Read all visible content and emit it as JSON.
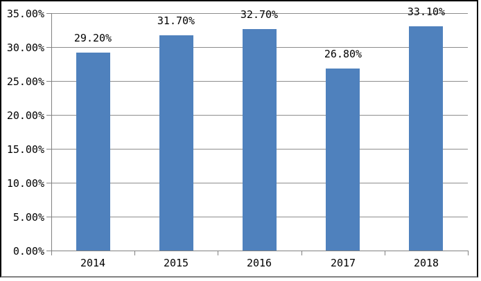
{
  "chart_data": {
    "type": "bar",
    "title": "",
    "xlabel": "",
    "ylabel": "",
    "categories": [
      "2014",
      "2015",
      "2016",
      "2017",
      "2018"
    ],
    "values": [
      29.2,
      31.7,
      32.7,
      26.8,
      33.1
    ],
    "value_labels": [
      "29.20%",
      "31.70%",
      "32.70%",
      "26.80%",
      "33.10%"
    ],
    "ylim": [
      0,
      35
    ],
    "y_ticks": [
      0,
      5,
      10,
      15,
      20,
      25,
      30,
      35
    ],
    "y_tick_labels": [
      "0.00%",
      "5.00%",
      "10.00%",
      "15.00%",
      "20.00%",
      "25.00%",
      "30.00%",
      "35.00%"
    ],
    "grid": true,
    "legend": false,
    "bar_color": "#4F81BD",
    "gridline_color": "#8c8c8c",
    "axis_color": "#808080",
    "frame_border_color": "#000000",
    "frame_bottom_color": "#808080",
    "text_color": "#000000",
    "background_color": "#ffffff"
  }
}
